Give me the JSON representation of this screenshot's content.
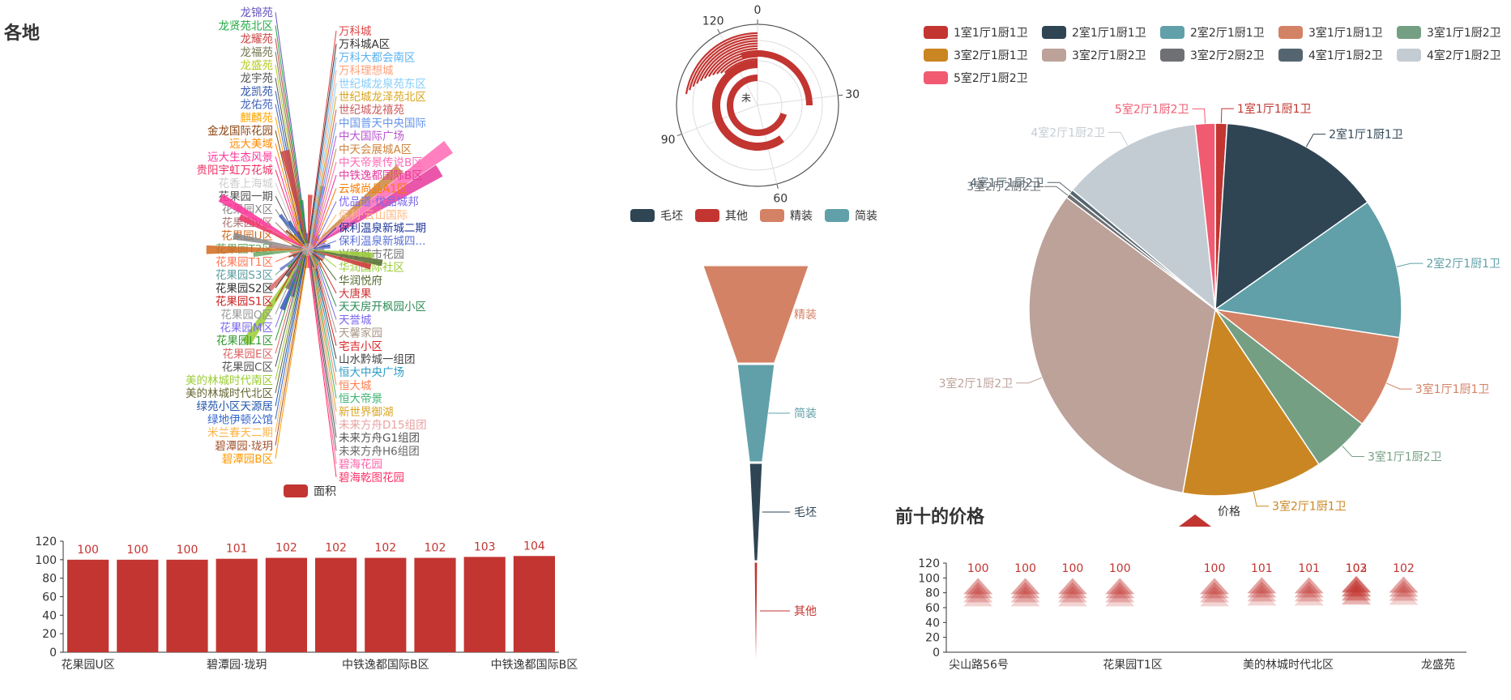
{
  "titles": {
    "left": "各地",
    "right": "前十的价格"
  },
  "chart_data": [
    {
      "id": "rose",
      "type": "pie",
      "variant": "nightingale-rose",
      "legend": [
        "面积"
      ],
      "legend_placement": "bottom",
      "categories": [
        "万科城",
        "万科城A区",
        "万科大都会南区",
        "万科理想城",
        "世纪城龙泉苑东区",
        "世纪城龙泽苑北区",
        "世纪城龙禧苑",
        "中国普天中央国际",
        "中大国际广场",
        "中天会展城A区",
        "中天帝景传说B区",
        "中铁逸都国际B区",
        "云城尚品A1区",
        "优品道·优品城邦",
        "保利·云山国际",
        "保利温泉新城二期",
        "保利温泉新城四...",
        "兴隆城市花园",
        "华润国际社区",
        "华润悦府",
        "大唐果",
        "天天房开枫园小区",
        "天誉城",
        "天馨家园",
        "宅吉小区",
        "山水黔城一组团",
        "恒大中央广场",
        "恒大城",
        "恒大帝景",
        "新世界御湖",
        "未来方舟D15组团",
        "未来方舟G1组团",
        "未来方舟H6组团",
        "碧海花园",
        "碧海乾图花园",
        "碧潭园B区",
        "碧潭园·珑玥",
        "米兰春天二期",
        "绿地伊顿公馆",
        "绿苑小区天源居",
        "美的林城时代北区",
        "美的林城时代南区",
        "花果园C区",
        "花果园E区",
        "花果园L1区",
        "花果园M区",
        "花果园Q区",
        "花果园S1区",
        "花果园S2区",
        "花果园S3区",
        "花果园T1区",
        "花果园T2区",
        "花果园U区",
        "花果园V区",
        "花果园X区",
        "花果园一期",
        "花香上海城",
        "贵阳宇虹万花城",
        "远大生态风景",
        "远大美域",
        "金龙国际花园",
        "麒麟苑",
        "龙佑苑",
        "龙凯苑",
        "龙宇苑",
        "龙盛苑",
        "龙福苑",
        "龙耀苑",
        "龙贤苑北区",
        "龙锦苑"
      ],
      "values": [
        45,
        10,
        55,
        10,
        8,
        8,
        8,
        10,
        8,
        110,
        160,
        140,
        12,
        10,
        10,
        14,
        14,
        8,
        55,
        65,
        55,
        10,
        10,
        10,
        10,
        8,
        8,
        14,
        10,
        10,
        12,
        10,
        8,
        8,
        10,
        10,
        10,
        8,
        40,
        55,
        35,
        100,
        25,
        45,
        18,
        25,
        8,
        8,
        12,
        8,
        10,
        45,
        90,
        30,
        65,
        8,
        8,
        65,
        90,
        15,
        20,
        12,
        35,
        25,
        12,
        18,
        10,
        90,
        40,
        8
      ]
    },
    {
      "id": "polar",
      "type": "bar",
      "variant": "polar-radial",
      "angle_axis_ticks": [
        0,
        30,
        60,
        90,
        120
      ],
      "radius_labels": [
        "毛坯",
        "其他",
        "精装",
        "简装"
      ],
      "legend": [
        "毛坯",
        "其他",
        "精装",
        "简装"
      ],
      "legend_placement": "bottom",
      "radius_center_label": "未"
    },
    {
      "id": "funnel",
      "type": "funnel",
      "categories": [
        "精装",
        "简装",
        "毛坯",
        "其他"
      ],
      "values": [
        100,
        35,
        12,
        3
      ]
    },
    {
      "id": "pie",
      "type": "pie",
      "legend_placement": "top",
      "categories": [
        "1室1厅1厨1卫",
        "2室1厅1厨1卫",
        "2室2厅1厨1卫",
        "3室1厅1厨1卫",
        "3室1厅1厨2卫",
        "3室2厅1厨1卫",
        "3室2厅1厨2卫",
        "3室2厅2厨2卫",
        "4室1厅1厨2卫",
        "4室2厅1厨2卫",
        "5室2厅1厨2卫"
      ],
      "values": [
        1,
        14,
        12,
        8,
        5,
        12,
        32,
        0.4,
        0.4,
        12,
        1.7
      ]
    },
    {
      "id": "bar_left",
      "type": "bar",
      "categories": [
        "花果园U区",
        "",
        "碧潭园·珑玥",
        "",
        "",
        "中铁逸都国际B区",
        "",
        "",
        "中铁逸都国际B区",
        ""
      ],
      "x_tick_labels": [
        "花果园U区",
        "碧潭园·珑玥",
        "中铁逸都国际B区",
        "中铁逸都国际B区"
      ],
      "values": [
        100,
        100,
        100,
        101,
        102,
        102,
        102,
        102,
        103,
        104
      ],
      "yticks": [
        0,
        20,
        40,
        60,
        80,
        100,
        120
      ],
      "ylim": [
        0,
        120
      ]
    },
    {
      "id": "pictorial_right",
      "type": "bar",
      "variant": "pictorial",
      "legend": [
        "价格"
      ],
      "legend_placement": "top",
      "x_tick_labels": [
        "尖山路56号",
        "花果园T1区",
        "美的林城时代北区",
        "龙盛苑"
      ],
      "values": [
        100,
        100,
        100,
        100,
        100,
        101,
        101,
        102,
        103,
        102
      ],
      "value_labels": [
        "100",
        "100",
        "100",
        "100",
        "100",
        "101",
        "101",
        "102",
        "103",
        "102"
      ],
      "yticks": [
        0,
        20,
        40,
        60,
        80,
        100,
        120
      ],
      "ylim": [
        0,
        120
      ]
    }
  ],
  "colors": {
    "red": "#c23531",
    "navy": "#2f4554",
    "teal": "#61a0a8",
    "salmon": "#d48265",
    "sage": "#749f83",
    "ochre": "#ca8622",
    "taupe": "#bda29a",
    "gray": "#6e7074",
    "slate": "#546570",
    "silver": "#c4ccd3",
    "pink": "#f05b72",
    "axis": "#333333"
  },
  "rose_palette": [
    "#dd4444",
    "#333333",
    "#5ab1ef",
    "#ffa07a",
    "#87cefa",
    "#daa520",
    "#cd5c5c",
    "#6495ed",
    "#ba55d3",
    "#cd853f",
    "#ff69b4",
    "#e6399b",
    "#fa7a00",
    "#7b68ee",
    "#ffb980",
    "#1e3799",
    "#5a6fd6",
    "#777777",
    "#9acd32",
    "#556b2f",
    "#cc3333",
    "#2e8b57",
    "#7b68ee",
    "#aa9988",
    "#dd2222",
    "#444444",
    "#2b9bc8",
    "#ff7f50",
    "#3cb371",
    "#daa520",
    "#e8a2a2",
    "#555555",
    "#666666",
    "#ff66aa",
    "#ff3366",
    "#ff9900",
    "#a0522d",
    "#ffb347",
    "#3366cc",
    "#2255aa",
    "#666633",
    "#9acd32",
    "#555555",
    "#dd6666",
    "#339933",
    "#7b68ee",
    "#999999",
    "#cc2222",
    "#333333",
    "#5f9ea0",
    "#ff7755",
    "#66aa66",
    "#d2691e",
    "#aa7777",
    "#888888",
    "#555555",
    "#cccccc",
    "#ee3366",
    "#ff3399",
    "#ff8800",
    "#8b4513",
    "#ffa500",
    "#4466bb",
    "#3355aa",
    "#555555",
    "#b8cc22",
    "#777755",
    "#cc4444",
    "#22aa44",
    "#6655bb"
  ]
}
